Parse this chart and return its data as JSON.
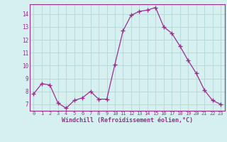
{
  "x": [
    0,
    1,
    2,
    3,
    4,
    5,
    6,
    7,
    8,
    9,
    10,
    11,
    12,
    13,
    14,
    15,
    16,
    17,
    18,
    19,
    20,
    21,
    22,
    23
  ],
  "y": [
    7.8,
    8.6,
    8.5,
    7.1,
    6.7,
    7.3,
    7.5,
    8.0,
    7.4,
    7.4,
    10.1,
    12.7,
    13.9,
    14.2,
    14.3,
    14.5,
    13.0,
    12.5,
    11.5,
    10.4,
    9.4,
    8.1,
    7.3,
    7.0
  ],
  "line_color": "#9b2d8e",
  "marker": "+",
  "marker_size": 4,
  "bg_color": "#d6f0f0",
  "grid_color": "#b8dada",
  "xlabel": "Windchill (Refroidissement éolien,°C)",
  "xlabel_color": "#9b2d8e",
  "tick_color": "#9b2d8e",
  "ylim": [
    6.5,
    14.75
  ],
  "xlim": [
    -0.5,
    23.5
  ],
  "yticks": [
    7,
    8,
    9,
    10,
    11,
    12,
    13,
    14
  ],
  "xticks": [
    0,
    1,
    2,
    3,
    4,
    5,
    6,
    7,
    8,
    9,
    10,
    11,
    12,
    13,
    14,
    15,
    16,
    17,
    18,
    19,
    20,
    21,
    22,
    23
  ]
}
